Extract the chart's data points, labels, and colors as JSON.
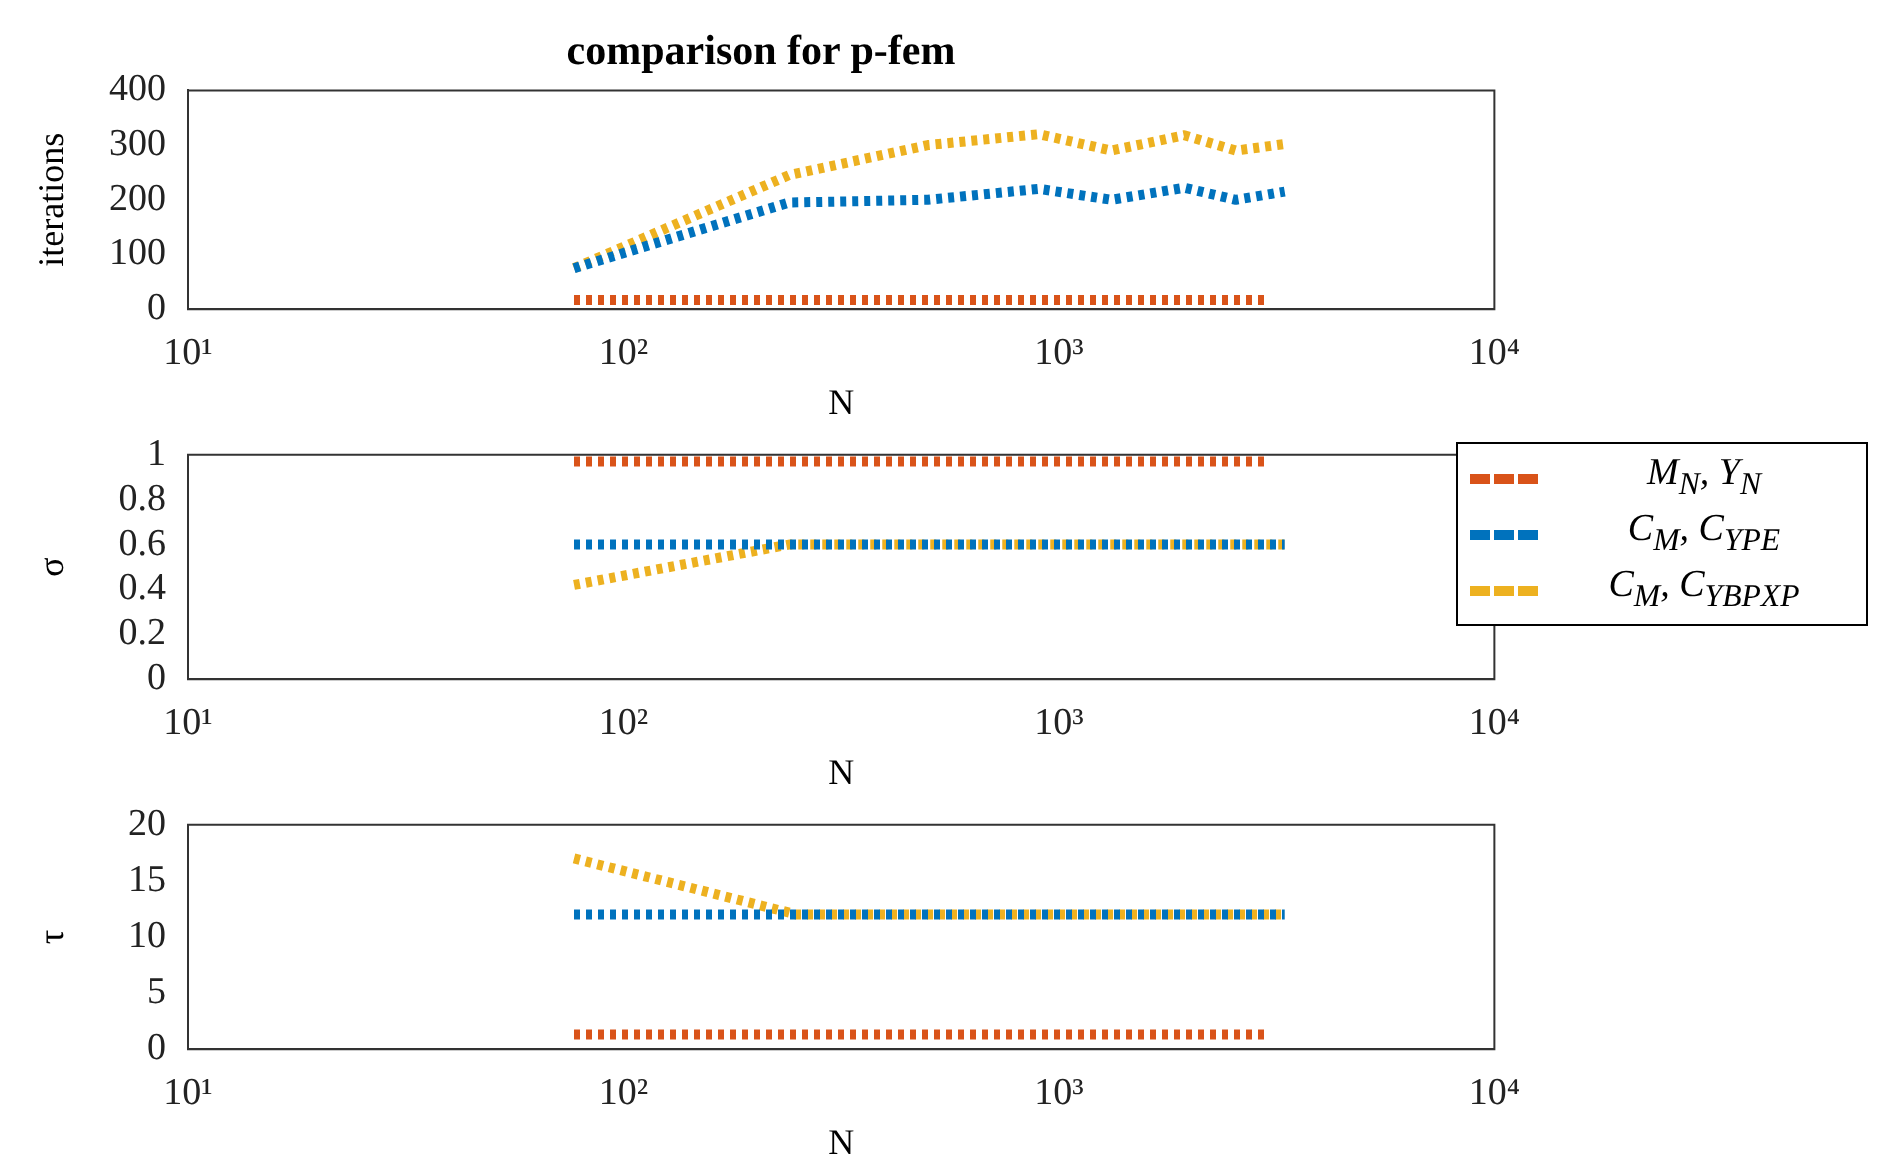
{
  "chart_data": [
    {
      "type": "line",
      "title": "comparison for p-fem",
      "xlabel": "N",
      "ylabel": "iterations",
      "log": "x",
      "grid": false,
      "line_style": "dotted",
      "xlim": [
        10,
        10000
      ],
      "xticks": [
        {
          "value": 10,
          "label": "10¹"
        },
        {
          "value": 100,
          "label": "10²"
        },
        {
          "value": 1000,
          "label": "10³"
        },
        {
          "value": 10000,
          "label": "10⁴"
        }
      ],
      "ylim": [
        0,
        400
      ],
      "yticks": [
        0,
        100,
        200,
        300,
        400
      ],
      "series": [
        {
          "color": "#d95319",
          "x": [
            77,
            3000
          ],
          "values": [
            17,
            17
          ]
        },
        {
          "color": "#0072bd",
          "x": [
            77,
            240,
            500,
            900,
            1320,
            1940,
            2550,
            3300
          ],
          "values": [
            75,
            195,
            200,
            220,
            200,
            222,
            200,
            215
          ]
        },
        {
          "color": "#edb120",
          "x": [
            77,
            240,
            500,
            900,
            1320,
            1940,
            2550,
            3300
          ],
          "values": [
            75,
            245,
            300,
            320,
            290,
            318,
            290,
            302
          ]
        }
      ]
    },
    {
      "type": "line",
      "xlabel": "N",
      "ylabel": "σ",
      "log": "x",
      "grid": false,
      "line_style": "dotted",
      "legend": "right",
      "xlim": [
        10,
        10000
      ],
      "xticks": [
        {
          "value": 10,
          "label": "10¹"
        },
        {
          "value": 100,
          "label": "10²"
        },
        {
          "value": 1000,
          "label": "10³"
        },
        {
          "value": 10000,
          "label": "10⁴"
        }
      ],
      "ylim": [
        0,
        1
      ],
      "yticks": [
        0,
        0.2,
        0.4,
        0.6,
        0.8,
        1
      ],
      "series": [
        {
          "name": "M$_{N}$, Y$_{N}$",
          "color": "#d95319",
          "x": [
            77,
            3000
          ],
          "values": [
            0.97,
            0.97
          ]
        },
        {
          "name": "C$_{M}$, C$_{YPE}$",
          "color": "#0072bd",
          "x": [
            77,
            3300
          ],
          "values": [
            0.6,
            0.6
          ]
        },
        {
          "name": "C$_{M}$, C$_{YBPXP}$",
          "color": "#edb120",
          "x": [
            77,
            240,
            3300
          ],
          "values": [
            0.42,
            0.6,
            0.6
          ]
        }
      ]
    },
    {
      "type": "line",
      "xlabel": "N",
      "ylabel": "τ",
      "log": "x",
      "grid": false,
      "line_style": "dotted",
      "xlim": [
        10,
        10000
      ],
      "xticks": [
        {
          "value": 10,
          "label": "10¹"
        },
        {
          "value": 100,
          "label": "10²"
        },
        {
          "value": 1000,
          "label": "10³"
        },
        {
          "value": 10000,
          "label": "10⁴"
        }
      ],
      "ylim": [
        0,
        20
      ],
      "yticks": [
        0,
        5,
        10,
        15,
        20
      ],
      "series": [
        {
          "color": "#d95319",
          "x": [
            77,
            3000
          ],
          "values": [
            1.3,
            1.3
          ]
        },
        {
          "color": "#0072bd",
          "x": [
            77,
            3300
          ],
          "values": [
            12,
            12
          ]
        },
        {
          "color": "#edb120",
          "x": [
            77,
            250,
            3300
          ],
          "values": [
            17,
            12,
            12
          ]
        }
      ]
    }
  ]
}
